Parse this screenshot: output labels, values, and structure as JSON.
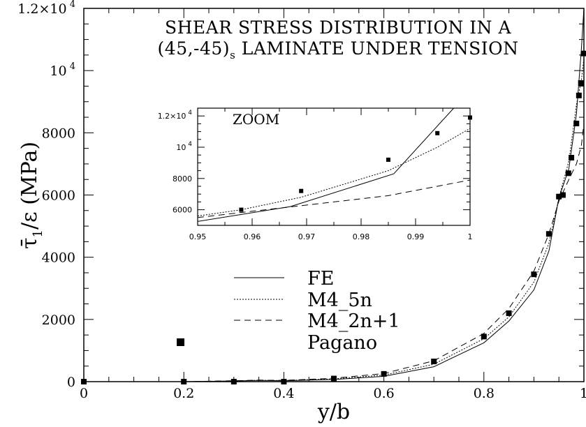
{
  "chart_data": {
    "type": "line",
    "title_line1": "SHEAR STRESS DISTRIBUTION IN A",
    "title_line2_main": "(45,-45)",
    "title_line2_sub": "s",
    "title_line2_rest": " LAMINATE UNDER TENSION",
    "xlabel": "y/b",
    "ylabel_main": "τ̄",
    "ylabel_sub": "1",
    "ylabel_rest": "/ε (MPa)",
    "xlim": [
      0,
      1
    ],
    "ylim": [
      0,
      12000
    ],
    "x_ticks": [
      {
        "value": 0,
        "label": "0"
      },
      {
        "value": 0.2,
        "label": "0.2"
      },
      {
        "value": 0.4,
        "label": "0.4"
      },
      {
        "value": 0.6,
        "label": "0.6"
      },
      {
        "value": 0.8,
        "label": "0.8"
      },
      {
        "value": 1,
        "label": "1"
      }
    ],
    "y_ticks": [
      {
        "value": 0,
        "label": "0"
      },
      {
        "value": 2000,
        "label": "2000"
      },
      {
        "value": 4000,
        "label": "4000"
      },
      {
        "value": 6000,
        "label": "6000"
      },
      {
        "value": 8000,
        "label": "8000"
      },
      {
        "value": 10000,
        "label": "10",
        "exp": "4"
      },
      {
        "value": 12000,
        "label": "1.2×10",
        "exp": "4"
      }
    ],
    "series": [
      {
        "name": "FE",
        "style": "solid",
        "x": [
          0.2,
          0.3,
          0.35,
          0.4,
          0.5,
          0.6,
          0.7,
          0.8,
          0.85,
          0.9,
          0.93,
          0.95,
          0.97,
          0.985,
          0.995,
          1.0
        ],
        "y": [
          0,
          20,
          40,
          30,
          70,
          170,
          480,
          1250,
          1950,
          2950,
          4200,
          5900,
          6850,
          8600,
          10700,
          12000
        ]
      },
      {
        "name": "M4_5n",
        "style": "dotted",
        "x": [
          0.2,
          0.3,
          0.35,
          0.4,
          0.5,
          0.6,
          0.7,
          0.8,
          0.85,
          0.9,
          0.93,
          0.95,
          0.97,
          0.985,
          0.995,
          1.0
        ],
        "y": [
          0,
          25,
          45,
          35,
          90,
          210,
          560,
          1380,
          2080,
          3200,
          4450,
          5900,
          7100,
          8900,
          9700,
          10400
        ]
      },
      {
        "name": "M4_2n+1",
        "style": "dashed",
        "x": [
          0.2,
          0.3,
          0.35,
          0.4,
          0.5,
          0.6,
          0.7,
          0.8,
          0.85,
          0.9,
          0.93,
          0.95,
          0.97,
          0.985,
          0.995,
          1.0
        ],
        "y": [
          0,
          30,
          50,
          40,
          110,
          260,
          670,
          1550,
          2350,
          3550,
          4750,
          5800,
          6500,
          7000,
          7600,
          8300
        ]
      },
      {
        "name": "Pagano",
        "style": "markers",
        "x": [
          0,
          0.2,
          0.3,
          0.4,
          0.5,
          0.6,
          0.7,
          0.8,
          0.85,
          0.9,
          0.93,
          0.95,
          0.958,
          0.969,
          0.975,
          0.985,
          0.99,
          0.994,
          1.0
        ],
        "y": [
          0,
          0,
          0,
          0,
          100,
          250,
          650,
          1450,
          2200,
          3450,
          4750,
          5950,
          6000,
          6700,
          7200,
          8300,
          9200,
          9600,
          10550
        ]
      }
    ],
    "legend_placement": "center-left",
    "inset": {
      "label": "ZOOM",
      "xlim": [
        0.95,
        1
      ],
      "ylim": [
        5000,
        12500
      ],
      "x_ticks": [
        {
          "value": 0.95,
          "label": "0.95"
        },
        {
          "value": 0.96,
          "label": "0.96"
        },
        {
          "value": 0.97,
          "label": "0.97"
        },
        {
          "value": 0.98,
          "label": "0.98"
        },
        {
          "value": 0.99,
          "label": "0.99"
        },
        {
          "value": 1,
          "label": "1"
        }
      ],
      "y_ticks": [
        {
          "value": 6000,
          "label": "6000"
        },
        {
          "value": 8000,
          "label": "8000"
        },
        {
          "value": 10000,
          "label": "10",
          "exp": "4"
        },
        {
          "value": 12000,
          "label": "1.2×10",
          "exp": "4"
        }
      ],
      "series": [
        {
          "name": "FE",
          "style": "solid",
          "x": [
            0.95,
            0.967,
            0.986,
            0.997
          ],
          "y": [
            5250,
            6200,
            8300,
            12500
          ]
        },
        {
          "name": "M4_5n",
          "style": "dotted",
          "x": [
            0.95,
            0.958,
            0.969,
            0.985,
            0.994,
            1.0
          ],
          "y": [
            5600,
            6000,
            6800,
            8500,
            10000,
            11200
          ]
        },
        {
          "name": "M4_2n+1",
          "style": "dashed",
          "x": [
            0.95,
            0.96,
            0.97,
            0.985,
            1.0
          ],
          "y": [
            5500,
            5900,
            6300,
            6900,
            7900
          ]
        },
        {
          "name": "Pagano",
          "style": "markers",
          "x": [
            0.958,
            0.969,
            0.985,
            0.994,
            1.0
          ],
          "y": [
            6000,
            7200,
            9200,
            10900,
            11900
          ]
        }
      ]
    }
  }
}
